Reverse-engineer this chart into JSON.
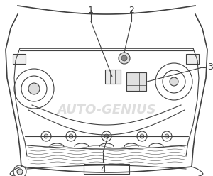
{
  "bg_color": "#ffffff",
  "line_color": "#404040",
  "watermark_color": "#c8c8c8",
  "watermark_text": "AUTO-GENIUS",
  "labels": [
    "1",
    "2",
    "3",
    "4"
  ],
  "label_fontsize": 9,
  "figsize": [
    3.0,
    2.48
  ],
  "dpi": 100
}
